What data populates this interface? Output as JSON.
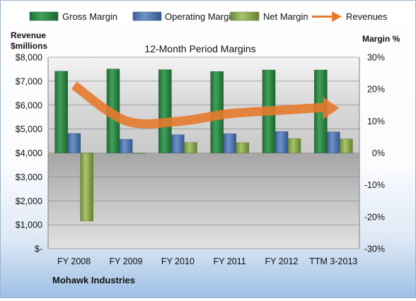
{
  "chart_data": {
    "type": "bar",
    "title": "12-Month Period Margins",
    "company": "Mohawk Industries",
    "left_axis_title": [
      "Revenue",
      "$millions"
    ],
    "right_axis_title": "Margin %",
    "categories": [
      "FY 2008",
      "FY 2009",
      "FY 2010",
      "FY 2011",
      "FY 2012",
      "TTM 3-2013"
    ],
    "left_ticks": [
      "$-",
      "$1,000",
      "$2,000",
      "$3,000",
      "$4,000",
      "$5,000",
      "$6,000",
      "$7,000",
      "$8,000"
    ],
    "right_ticks": [
      "-30%",
      "-20%",
      "-10%",
      "0%",
      "10%",
      "20%",
      "30%"
    ],
    "left_range": [
      0,
      8000
    ],
    "right_range": [
      -30,
      30
    ],
    "series": [
      {
        "name": "Gross Margin",
        "axis": "right",
        "kind": "bar",
        "color": "#2f8a46",
        "values": [
          25.6,
          26.3,
          26.1,
          25.5,
          26.0,
          26.0
        ]
      },
      {
        "name": "Operating Margin",
        "axis": "right",
        "kind": "bar",
        "color": "#4f77b5",
        "values": [
          6.1,
          4.3,
          5.7,
          6.0,
          6.7,
          6.6
        ]
      },
      {
        "name": "Net Margin",
        "axis": "right",
        "kind": "bar",
        "color": "#8aaa4c",
        "values": [
          -21.3,
          0.0,
          3.3,
          3.2,
          4.5,
          4.4
        ]
      },
      {
        "name": "Revenues",
        "axis": "left",
        "kind": "line",
        "color": "#e57a2c",
        "values": [
          6826,
          5344,
          5319,
          5642,
          5788,
          5900
        ]
      }
    ],
    "grid": true,
    "legend": "top"
  }
}
